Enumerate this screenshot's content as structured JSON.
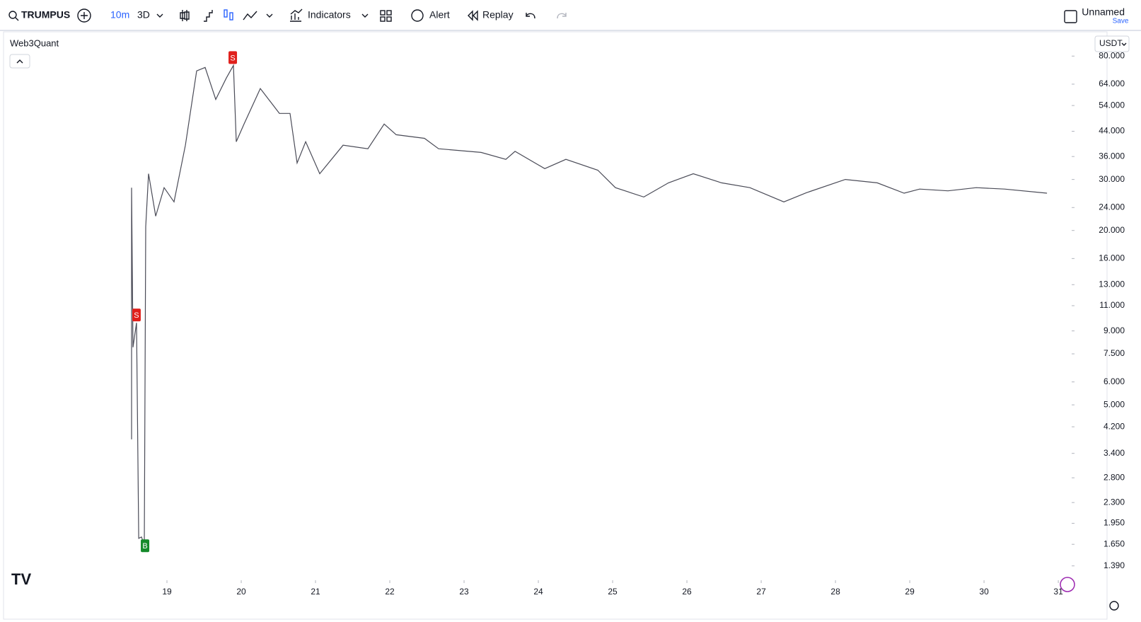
{
  "toolbar": {
    "symbol": "TRUMPUS",
    "interval": "10m",
    "range": "3D",
    "indicators": "Indicators",
    "alert": "Alert",
    "replay": "Replay",
    "layout_name": "Unnamed",
    "save": "Save"
  },
  "chart_data": {
    "type": "line",
    "legend_title": "Web3Quant",
    "currency": "USDT",
    "log_scale": true,
    "x": [
      18.524,
      18.524,
      18.543,
      18.59,
      18.62,
      18.657,
      18.695,
      18.714,
      18.752,
      18.848,
      18.962,
      19.095,
      19.248,
      19.4,
      19.514,
      19.657,
      19.8,
      19.895,
      19.933,
      20.038,
      20.257,
      20.514,
      20.657,
      20.752,
      20.867,
      21.057,
      21.371,
      21.705,
      21.924,
      22.086,
      22.467,
      22.657,
      23.229,
      23.562,
      23.686,
      24.086,
      24.371,
      24.8,
      25.038,
      25.419,
      25.752,
      26.086,
      26.467,
      26.848,
      27.305,
      27.61,
      28.133,
      28.562,
      28.924,
      29.133,
      29.514,
      29.895,
      30.276,
      30.848
    ],
    "series": [
      {
        "color": "#4a4b57",
        "values": [
          3.8,
          28.1,
          7.9,
          9.6,
          1.73,
          1.75,
          1.64,
          20.6,
          31.4,
          22.4,
          28.1,
          25.1,
          39.4,
          71.1,
          73.1,
          56.7,
          67.2,
          74.3,
          40.5,
          46.6,
          61.8,
          50.7,
          50.7,
          34.2,
          40.5,
          31.4,
          39.4,
          38.3,
          46.6,
          42.8,
          41.6,
          38.3,
          37.2,
          35.2,
          37.5,
          32.7,
          35.2,
          32.3,
          28.1,
          26.1,
          29.2,
          31.4,
          29.2,
          28.1,
          25.1,
          27.0,
          30.0,
          29.2,
          26.9,
          27.8,
          27.4,
          28.1,
          27.8,
          26.9
        ]
      }
    ],
    "signals": [
      {
        "label": "S",
        "color": "#e0201c",
        "x": 18.59,
        "price": 9.6
      },
      {
        "label": "S",
        "color": "#e0201c",
        "x": 19.886,
        "price": 74.3
      },
      {
        "label": "B",
        "color": "#148a2a",
        "x": 18.705,
        "price": 1.64
      }
    ],
    "xlim": [
      16.8,
      31.18
    ],
    "xticks": [
      19,
      20,
      21,
      22,
      23,
      24,
      25,
      26,
      27,
      28,
      29,
      30,
      31
    ],
    "ylim": [
      1.24,
      97
    ],
    "yticks": [
      {
        "value": 80,
        "label": "80.000"
      },
      {
        "value": 64,
        "label": "64.000"
      },
      {
        "value": 54,
        "label": "54.000"
      },
      {
        "value": 44,
        "label": "44.000"
      },
      {
        "value": 36,
        "label": "36.000"
      },
      {
        "value": 30,
        "label": "30.000"
      },
      {
        "value": 24,
        "label": "24.000"
      },
      {
        "value": 20,
        "label": "20.000"
      },
      {
        "value": 16,
        "label": "16.000"
      },
      {
        "value": 13,
        "label": "13.000"
      },
      {
        "value": 11,
        "label": "11.000"
      },
      {
        "value": 9,
        "label": "9.000"
      },
      {
        "value": 7.5,
        "label": "7.500"
      },
      {
        "value": 6,
        "label": "6.000"
      },
      {
        "value": 5,
        "label": "5.000"
      },
      {
        "value": 4.2,
        "label": "4.200"
      },
      {
        "value": 3.4,
        "label": "3.400"
      },
      {
        "value": 2.8,
        "label": "2.800"
      },
      {
        "value": 2.3,
        "label": "2.300"
      },
      {
        "value": 1.95,
        "label": "1.950"
      },
      {
        "value": 1.65,
        "label": "1.650"
      },
      {
        "value": 1.39,
        "label": "1.390"
      }
    ]
  }
}
